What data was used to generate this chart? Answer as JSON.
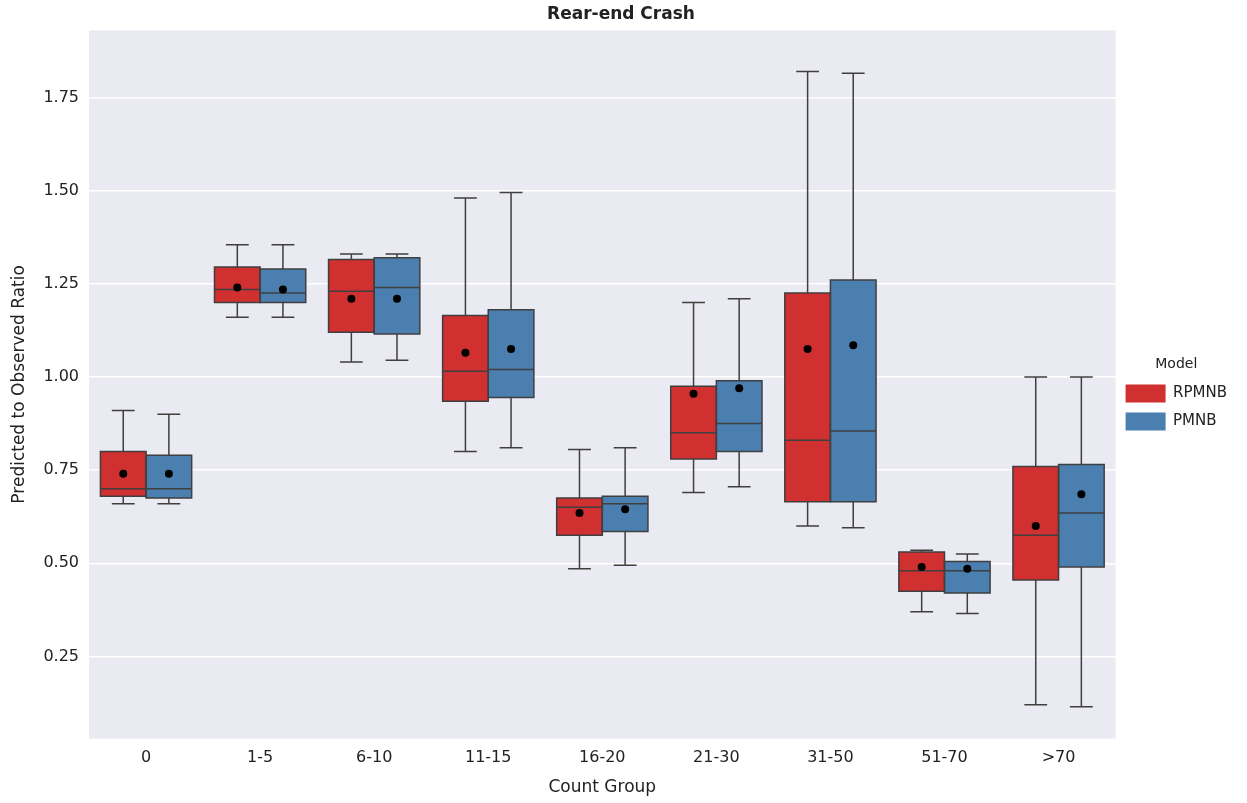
{
  "chart_data": {
    "type": "box",
    "title": "Rear-end Crash",
    "xlabel": "Count Group",
    "ylabel": "Predicted to Observed Ratio",
    "legend_title": "Model",
    "legend": "right",
    "grid": "y",
    "categories": [
      "0",
      "1-5",
      "6-10",
      "11-15",
      "16-20",
      "21-30",
      "31-50",
      "51-70",
      ">70"
    ],
    "ylim": [
      0.03,
      1.93
    ],
    "yticks": [
      {
        "value": 0.25,
        "label": "0.25"
      },
      {
        "value": 0.5,
        "label": "0.50"
      },
      {
        "value": 0.75,
        "label": "0.75"
      },
      {
        "value": 1,
        "label": "1.00"
      },
      {
        "value": 1.25,
        "label": "1.25"
      },
      {
        "value": 1.5,
        "label": "1.50"
      },
      {
        "value": 1.75,
        "label": "1.75"
      }
    ],
    "series": [
      {
        "name": "RPMNB",
        "color": "#d03030",
        "boxes": [
          {
            "low": 0.66,
            "q1": 0.68,
            "median": 0.7,
            "q3": 0.8,
            "high": 0.91,
            "mean": 0.74
          },
          {
            "low": 1.16,
            "q1": 1.2,
            "median": 1.235,
            "q3": 1.295,
            "high": 1.355,
            "mean": 1.24
          },
          {
            "low": 1.04,
            "q1": 1.12,
            "median": 1.23,
            "q3": 1.315,
            "high": 1.33,
            "mean": 1.21
          },
          {
            "low": 0.8,
            "q1": 0.935,
            "median": 1.015,
            "q3": 1.165,
            "high": 1.48,
            "mean": 1.065
          },
          {
            "low": 0.485,
            "q1": 0.575,
            "median": 0.65,
            "q3": 0.675,
            "high": 0.805,
            "mean": 0.635
          },
          {
            "low": 0.69,
            "q1": 0.78,
            "median": 0.85,
            "q3": 0.975,
            "high": 1.2,
            "mean": 0.955
          },
          {
            "low": 0.6,
            "q1": 0.665,
            "median": 0.83,
            "q3": 1.225,
            "high": 1.82,
            "mean": 1.075
          },
          {
            "low": 0.37,
            "q1": 0.425,
            "median": 0.48,
            "q3": 0.53,
            "high": 0.535,
            "mean": 0.49
          },
          {
            "low": 0.12,
            "q1": 0.455,
            "median": 0.575,
            "q3": 0.76,
            "high": 1.0,
            "mean": 0.6
          }
        ]
      },
      {
        "name": "PMNB",
        "color": "#4a7fb0",
        "boxes": [
          {
            "low": 0.66,
            "q1": 0.675,
            "median": 0.7,
            "q3": 0.79,
            "high": 0.9,
            "mean": 0.74
          },
          {
            "low": 1.16,
            "q1": 1.2,
            "median": 1.225,
            "q3": 1.29,
            "high": 1.355,
            "mean": 1.235
          },
          {
            "low": 1.045,
            "q1": 1.115,
            "median": 1.24,
            "q3": 1.32,
            "high": 1.33,
            "mean": 1.21
          },
          {
            "low": 0.81,
            "q1": 0.945,
            "median": 1.02,
            "q3": 1.18,
            "high": 1.495,
            "mean": 1.075
          },
          {
            "low": 0.495,
            "q1": 0.585,
            "median": 0.66,
            "q3": 0.68,
            "high": 0.81,
            "mean": 0.645
          },
          {
            "low": 0.705,
            "q1": 0.8,
            "median": 0.875,
            "q3": 0.99,
            "high": 1.21,
            "mean": 0.97
          },
          {
            "low": 0.595,
            "q1": 0.665,
            "median": 0.855,
            "q3": 1.26,
            "high": 1.815,
            "mean": 1.085
          },
          {
            "low": 0.365,
            "q1": 0.42,
            "median": 0.48,
            "q3": 0.505,
            "high": 0.525,
            "mean": 0.485
          },
          {
            "low": 0.115,
            "q1": 0.49,
            "median": 0.635,
            "q3": 0.765,
            "high": 1.0,
            "mean": 0.685
          }
        ]
      }
    ]
  }
}
